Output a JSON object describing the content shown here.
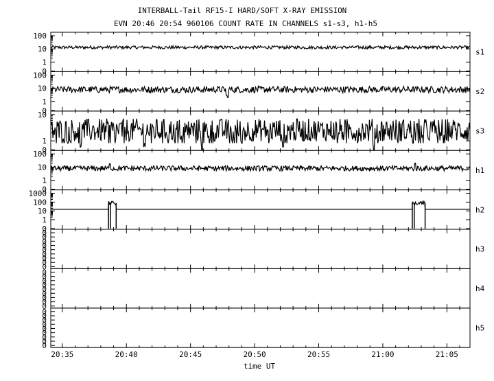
{
  "title_line1": "INTERBALL-Tail RF15-I HARD/SOFT X-RAY EMISSION",
  "title_line2": "EVN 20:46 20:54 960106  COUNT RATE IN CHANNELS s1-s3, h1-h5",
  "xlabel": "time UT",
  "x_ticks": [
    "20:35",
    "20:40",
    "20:45",
    "20:50",
    "20:55",
    "21:00",
    "21:05"
  ],
  "chart_data": {
    "type": "line",
    "title": "INTERBALL-Tail RF15-I HARD/SOFT X-RAY EMISSION",
    "subtitle": "EVN 20:46 20:54 960106  COUNT RATE IN CHANNELS s1-s3, h1-h5",
    "xlabel": "time UT",
    "x_range": [
      "20:34",
      "21:06"
    ],
    "x_range_minutes": [
      34.1,
      66.8
    ],
    "yscale": "log",
    "panels": [
      {
        "name": "s1",
        "y_ticks": [
          "100",
          "10",
          "1",
          "0"
        ],
        "baseline": 13,
        "noise": 0.12,
        "gaps": [],
        "events": []
      },
      {
        "name": "s2",
        "y_ticks": [
          "100",
          "10",
          "1",
          "0"
        ],
        "baseline": 8,
        "noise": 0.25,
        "gaps": [],
        "events": [
          {
            "t": 47.8,
            "value": 3,
            "kind": "dip"
          },
          {
            "t": 47.9,
            "value": 2,
            "kind": "dip"
          }
        ]
      },
      {
        "name": "s3",
        "y_ticks": [
          "10",
          "1",
          "0"
        ],
        "baseline": 2.5,
        "noise": 0.45,
        "gaps": [],
        "events": [
          {
            "t": 45.9,
            "value": 0,
            "kind": "dip"
          },
          {
            "t": 59.3,
            "value": 0,
            "kind": "dip"
          },
          {
            "t": 36.4,
            "value": 0.15,
            "kind": "dip"
          },
          {
            "t": 41.4,
            "value": 0.15,
            "kind": "dip"
          },
          {
            "t": 52.2,
            "value": 0.15,
            "kind": "dip"
          }
        ]
      },
      {
        "name": "h1",
        "y_ticks": [
          "100",
          "10",
          "1",
          "0"
        ],
        "baseline": 8,
        "noise": 0.2,
        "gaps": [],
        "events": [
          {
            "t": 38.7,
            "value": 18,
            "kind": "peak"
          },
          {
            "t": 62.5,
            "value": 20,
            "kind": "peak"
          }
        ]
      },
      {
        "name": "h2",
        "y_ticks": [
          "1000",
          "100",
          "10",
          "1",
          "0"
        ],
        "baseline": 15,
        "noise": 0.0,
        "gaps": [],
        "events": [
          {
            "t_start": 38.6,
            "t_end": 39.2,
            "value": 80,
            "kind": "burst"
          },
          {
            "t_start": 62.3,
            "t_end": 63.3,
            "value": 80,
            "kind": "burst"
          }
        ]
      },
      {
        "name": "h3",
        "y_ticks": [
          "0",
          "0",
          "0",
          "0",
          "0",
          "0",
          "0",
          "0",
          "0"
        ],
        "baseline": null,
        "empty": true
      },
      {
        "name": "h4",
        "y_ticks": [
          "0",
          "0",
          "0",
          "0",
          "0",
          "0",
          "0",
          "0",
          "0"
        ],
        "baseline": null,
        "empty": true
      },
      {
        "name": "h5",
        "y_ticks": [
          "0",
          "0",
          "0",
          "0",
          "0",
          "0",
          "0",
          "0",
          "0"
        ],
        "baseline": null,
        "empty": true
      }
    ],
    "grid": false,
    "legend": "none"
  }
}
